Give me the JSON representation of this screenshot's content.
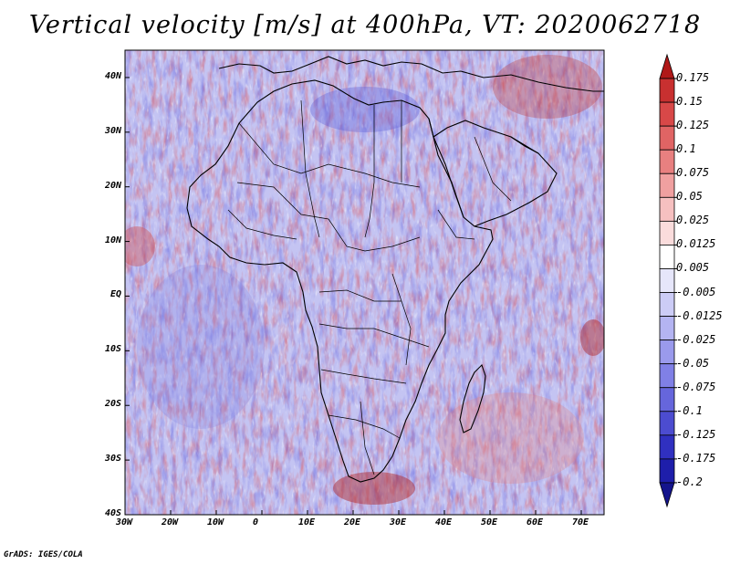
{
  "title": "Vertical velocity [m/s] at 400hPa, VT: 2020062718",
  "credit": "GrADS: IGES/COLA",
  "map": {
    "variable": "Vertical velocity",
    "units": "m/s",
    "level": "400hPa",
    "valid_time": "2020062718",
    "lat_labels": [
      "40N",
      "30N",
      "20N",
      "10N",
      "EQ",
      "10S",
      "20S",
      "30S",
      "40S"
    ],
    "lat_values": [
      40,
      30,
      20,
      10,
      0,
      -10,
      -20,
      -30,
      -40
    ],
    "lon_labels": [
      "30W",
      "20W",
      "10W",
      "0",
      "10E",
      "20E",
      "30E",
      "40E",
      "50E",
      "60E",
      "70E"
    ],
    "lon_values": [
      -30,
      -20,
      -10,
      0,
      10,
      20,
      30,
      40,
      50,
      60,
      70
    ],
    "lat_range": [
      -40,
      45
    ],
    "lon_range": [
      -30,
      75
    ]
  },
  "colorbar": {
    "labels": [
      "0.175",
      "0.15",
      "0.125",
      "0.1",
      "0.075",
      "0.05",
      "0.025",
      "0.0125",
      "0.005",
      "-0.005",
      "-0.0125",
      "-0.025",
      "-0.05",
      "-0.075",
      "-0.1",
      "-0.125",
      "-0.175",
      "-0.2"
    ],
    "colors": [
      "#b01818",
      "#c83030",
      "#d84848",
      "#e06464",
      "#e88080",
      "#f0a0a0",
      "#f6c0c0",
      "#fadcdc",
      "#ffffff",
      "#e6e6fa",
      "#ccccf6",
      "#b4b4f2",
      "#9a9aec",
      "#8080e6",
      "#6666dc",
      "#4c4cd0",
      "#3030c0",
      "#1e1eaa",
      "#14148c"
    ]
  }
}
